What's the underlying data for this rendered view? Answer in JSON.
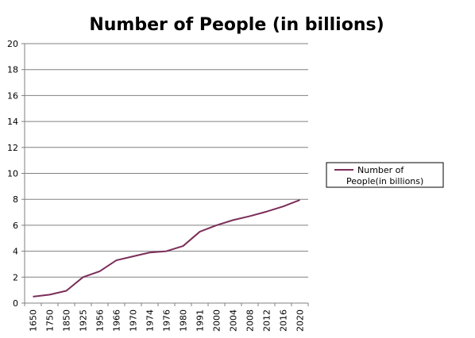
{
  "chart_data": {
    "type": "line",
    "title": "Number of People (in billions)",
    "xlabel": "",
    "ylabel": "",
    "categories": [
      "1650",
      "1750",
      "1850",
      "1925",
      "1956",
      "1966",
      "1970",
      "1974",
      "1976",
      "1980",
      "1991",
      "2000",
      "2004",
      "2008",
      "2012",
      "2016",
      "2020"
    ],
    "series": [
      {
        "name": "Number of People(in billions)",
        "values": [
          0.5,
          0.65,
          0.95,
          2.0,
          2.45,
          3.3,
          3.6,
          3.9,
          4.0,
          4.4,
          5.5,
          6.0,
          6.4,
          6.7,
          7.05,
          7.45,
          7.95
        ],
        "color": "#7b2d59"
      }
    ],
    "ylim": [
      0,
      20
    ],
    "yticks": [
      "0",
      "2",
      "4",
      "6",
      "8",
      "10",
      "12",
      "14",
      "16",
      "18",
      "20"
    ],
    "grid": true,
    "legend": "right",
    "legend_label_lines": [
      "Number of",
      "People(in billions)"
    ]
  }
}
